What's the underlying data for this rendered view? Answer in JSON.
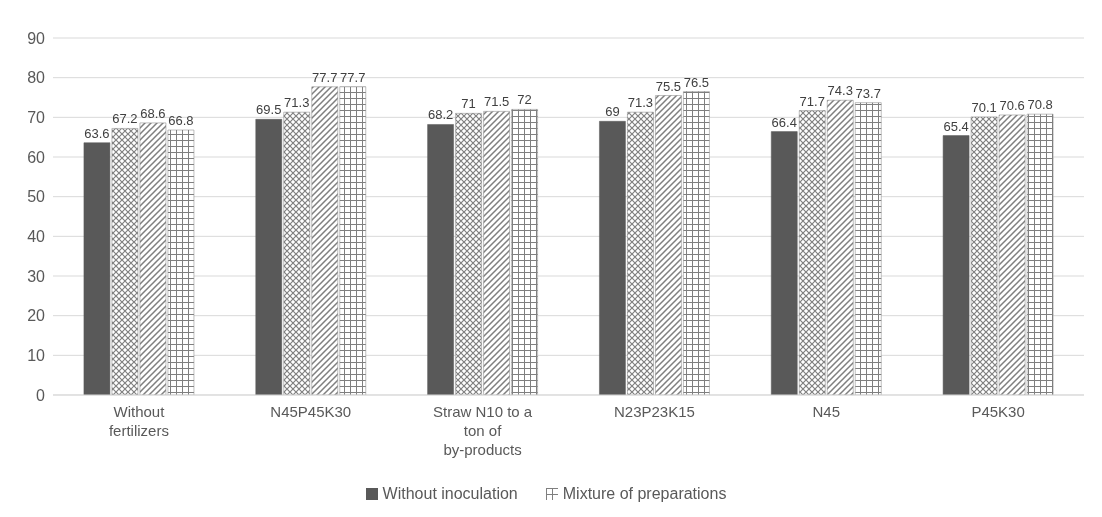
{
  "chart_data": {
    "type": "bar",
    "categories": [
      "Without fertilizers",
      "N45P45K30",
      "Straw N10 to a ton of by-products",
      "N23P23K15",
      "N45",
      "P45K30"
    ],
    "series": [
      {
        "name": "Without inoculation",
        "color": "#595959",
        "values": [
          63.6,
          69.5,
          68.2,
          69,
          66.4,
          65.4
        ]
      },
      {
        "color": "#7f7f7f",
        "values": [
          67.2,
          71.3,
          71,
          71.3,
          71.7,
          70.1
        ]
      },
      {
        "color": "#7f7f7f",
        "values": [
          68.6,
          77.7,
          71.5,
          75.5,
          74.3,
          70.6
        ]
      },
      {
        "name": "Mixture of preparations",
        "color": "#7f7f7f",
        "values": [
          66.8,
          77.7,
          72,
          76.5,
          73.7,
          70.8
        ]
      }
    ],
    "ylim": [
      0,
      90
    ],
    "yticks": [
      0,
      10,
      20,
      30,
      40,
      50,
      60,
      70,
      80,
      90
    ],
    "grid": "y",
    "legend": "bottom",
    "data_labels": true
  }
}
